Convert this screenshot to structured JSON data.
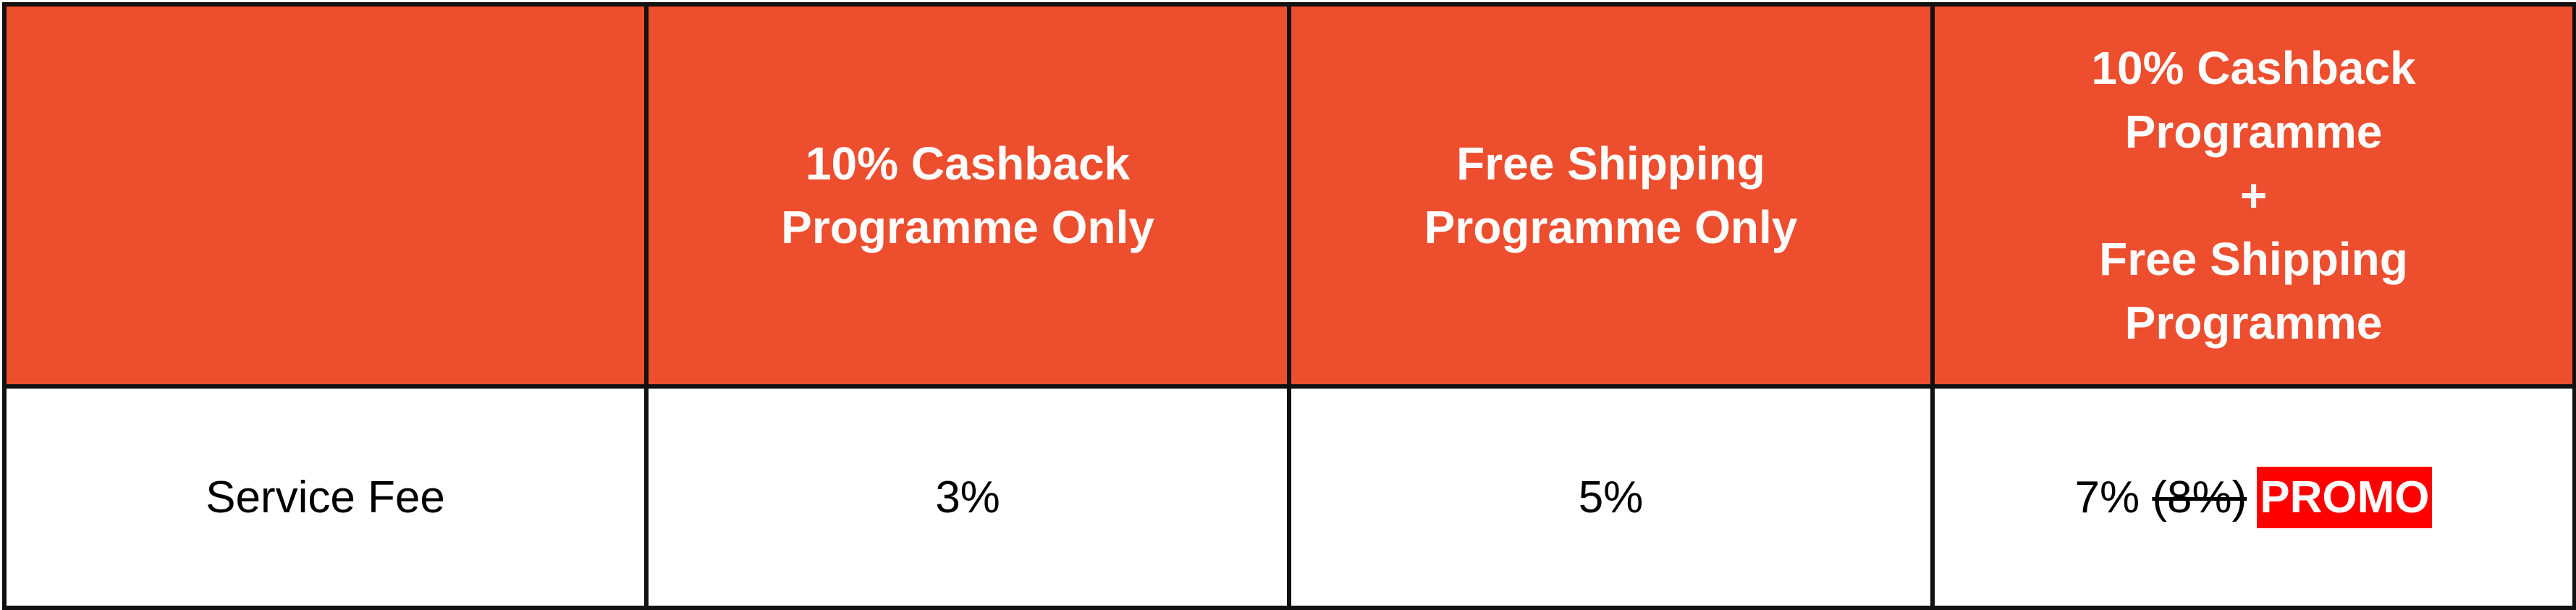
{
  "colors": {
    "header_bg": "#ED4E2E",
    "promo_bg": "#FF0000",
    "border": "#111111"
  },
  "table": {
    "headers": [
      "",
      [
        "10% Cashback",
        "Programme Only"
      ],
      [
        "Free Shipping",
        "Programme Only"
      ],
      [
        "10% Cashback",
        "Programme",
        "+",
        "Free Shipping",
        "Programme"
      ]
    ],
    "row": {
      "label": "Service Fee",
      "cashback_only": "3%",
      "free_shipping_only": "5%",
      "combined": {
        "current": "7%",
        "original": "(8%)",
        "badge": "PROMO"
      }
    }
  }
}
